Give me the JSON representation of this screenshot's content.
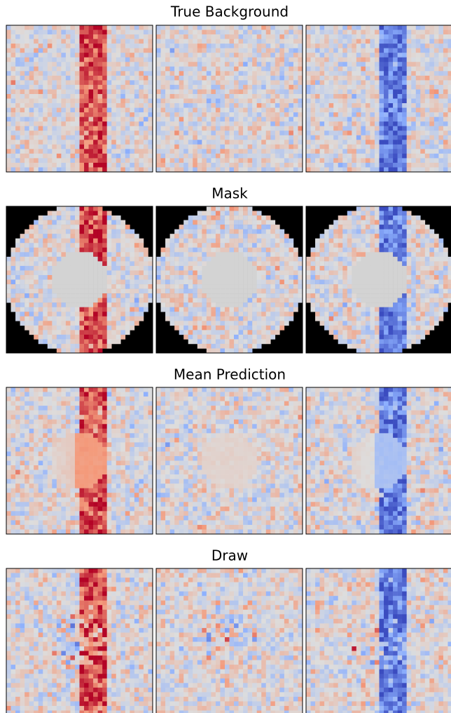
{
  "figure": {
    "rows": [
      {
        "title": "True Background"
      },
      {
        "title": "Mask"
      },
      {
        "title": "Mean Prediction"
      },
      {
        "title": "Draw"
      }
    ]
  }
}
